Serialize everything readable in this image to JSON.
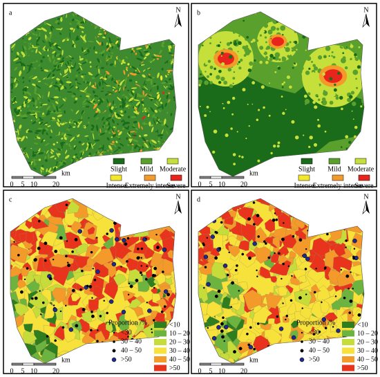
{
  "panels": [
    {
      "label": "a",
      "north": "N",
      "legend": [
        {
          "label": "Slight",
          "color": "#1a6b1a"
        },
        {
          "label": "Mild",
          "color": "#5aa02c"
        },
        {
          "label": "Moderate",
          "color": "#c5e03a"
        },
        {
          "label": "Intense",
          "color": "#f5e82a"
        },
        {
          "label": "Extremely intense",
          "color": "#f39a2a"
        },
        {
          "label": "Severe",
          "color": "#e8251c"
        }
      ],
      "scale": {
        "ticks": [
          0,
          5,
          10,
          20
        ],
        "unit": "km"
      }
    },
    {
      "label": "b",
      "north": "N",
      "legend": [
        {
          "label": "Slight",
          "color": "#1a6b1a"
        },
        {
          "label": "Mild",
          "color": "#5aa02c"
        },
        {
          "label": "Moderate",
          "color": "#c5e03a"
        },
        {
          "label": "Intense",
          "color": "#f5e82a"
        },
        {
          "label": "Extremely intense",
          "color": "#f39a2a"
        },
        {
          "label": "Severe",
          "color": "#e8251c"
        }
      ],
      "scale": {
        "ticks": [
          0,
          5,
          10,
          20
        ],
        "unit": "km"
      }
    },
    {
      "label": "c",
      "north": "N",
      "legend_title": "Proportion /%",
      "points": [
        {
          "label": "<30",
          "color": "#000000"
        },
        {
          "label": "30 – 40",
          "color": "#000000"
        },
        {
          "label": "40 – 50",
          "color": "#000000"
        },
        {
          "label": ">50",
          "color": "#1f2a8a"
        }
      ],
      "legend": [
        {
          "label": "<10",
          "color": "#2e7d1e"
        },
        {
          "label": "10 – 20",
          "color": "#6db33f"
        },
        {
          "label": "20 – 30",
          "color": "#c6dc3a"
        },
        {
          "label": "30 – 40",
          "color": "#f6e23a"
        },
        {
          "label": "40 – 50",
          "color": "#f39a2a"
        },
        {
          "label": ">50",
          "color": "#e8341c"
        }
      ],
      "scale": {
        "ticks": [
          0,
          5,
          10,
          20
        ],
        "unit": "km"
      }
    },
    {
      "label": "d",
      "north": "N",
      "legend_title": "Proportion /%",
      "points": [
        {
          "label": "<30",
          "color": "#000000"
        },
        {
          "label": "30 – 40",
          "color": "#000000"
        },
        {
          "label": "40 – 50",
          "color": "#000000"
        },
        {
          "label": ">50",
          "color": "#1f2a8a"
        }
      ],
      "legend": [
        {
          "label": "<10",
          "color": "#2e7d1e"
        },
        {
          "label": "10 – 20",
          "color": "#6db33f"
        },
        {
          "label": "20 – 30",
          "color": "#c6dc3a"
        },
        {
          "label": "30 – 40",
          "color": "#f6e23a"
        },
        {
          "label": "40 – 50",
          "color": "#f39a2a"
        },
        {
          "label": ">50",
          "color": "#e8341c"
        }
      ],
      "scale": {
        "ticks": [
          0,
          5,
          10,
          20
        ],
        "unit": "km"
      }
    }
  ]
}
